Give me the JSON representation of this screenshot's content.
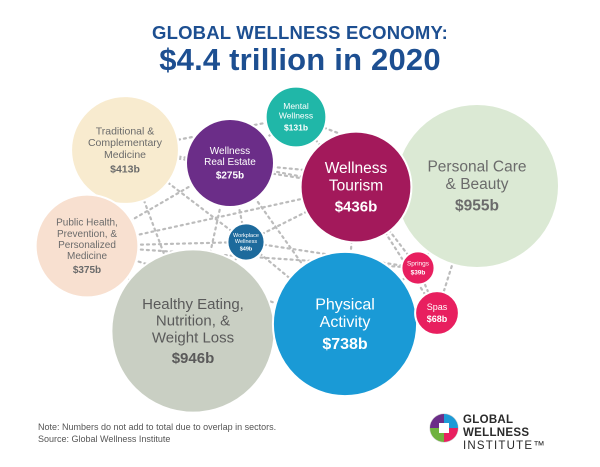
{
  "header": {
    "title_top": "GLOBAL WELLNESS ECONOMY:",
    "title_main": "$4.4 trillion in 2020"
  },
  "chart_data": {
    "type": "bubble",
    "unit": "$b",
    "series": [
      {
        "name": "Personal Care & Beauty",
        "lines": [
          "Personal Care",
          "& Beauty"
        ],
        "label": "$955b",
        "value": 955,
        "color": "#dbe9d4",
        "text_color": "#6b6b6b"
      },
      {
        "name": "Healthy Eating, Nutrition, & Weight Loss",
        "lines": [
          "Healthy Eating,",
          "Nutrition, &",
          "Weight Loss"
        ],
        "label": "$946b",
        "value": 946,
        "color": "#c9cfc3",
        "text_color": "#5a5a5a"
      },
      {
        "name": "Physical Activity",
        "lines": [
          "Physical",
          "Activity"
        ],
        "label": "$738b",
        "value": 738,
        "color": "#1a9ad6",
        "text_color": "#ffffff"
      },
      {
        "name": "Wellness Tourism",
        "lines": [
          "Wellness",
          "Tourism"
        ],
        "label": "$436b",
        "value": 436,
        "color": "#a3195b",
        "text_color": "#ffffff"
      },
      {
        "name": "Traditional & Complementary Medicine",
        "lines": [
          "Traditional &",
          "Complementary",
          "Medicine"
        ],
        "label": "$413b",
        "value": 413,
        "color": "#f8ebcf",
        "text_color": "#6b6b6b"
      },
      {
        "name": "Public Health, Prevention, & Personalized Medicine",
        "lines": [
          "Public Health,",
          "Prevention, &",
          "Personalized",
          "Medicine"
        ],
        "label": "$375b",
        "value": 375,
        "color": "#f8e0d0",
        "text_color": "#6b6b6b"
      },
      {
        "name": "Wellness Real Estate",
        "lines": [
          "Wellness",
          "Real Estate"
        ],
        "label": "$275b",
        "value": 275,
        "color": "#6b2d88",
        "text_color": "#ffffff"
      },
      {
        "name": "Mental Wellness",
        "lines": [
          "Mental",
          "Wellness"
        ],
        "label": "$131b",
        "value": 131,
        "color": "#20b7a8",
        "text_color": "#ffffff"
      },
      {
        "name": "Spas",
        "lines": [
          "Spas"
        ],
        "label": "$68b",
        "value": 68,
        "color": "#e81f5f",
        "text_color": "#ffffff"
      },
      {
        "name": "Workplace Wellness",
        "lines": [
          "Workplace",
          "Wellness"
        ],
        "label": "$49b",
        "value": 49,
        "color": "#1d6a9c",
        "text_color": "#ffffff"
      },
      {
        "name": "Springs",
        "lines": [
          "Springs"
        ],
        "label": "$39b",
        "value": 39,
        "color": "#e81f5f",
        "text_color": "#ffffff"
      }
    ],
    "connector_style": "dotted grey lines",
    "colors": {
      "title": "#1d4f91",
      "connector": "#bcbcbc"
    }
  },
  "notes": {
    "line1": "Note: Numbers do not add to total due to overlap in sectors.",
    "line2": "Source: Global Wellness Institute"
  },
  "logo": {
    "line1": "GLOBAL WELLNESS",
    "line2": "INSTITUTE™"
  }
}
